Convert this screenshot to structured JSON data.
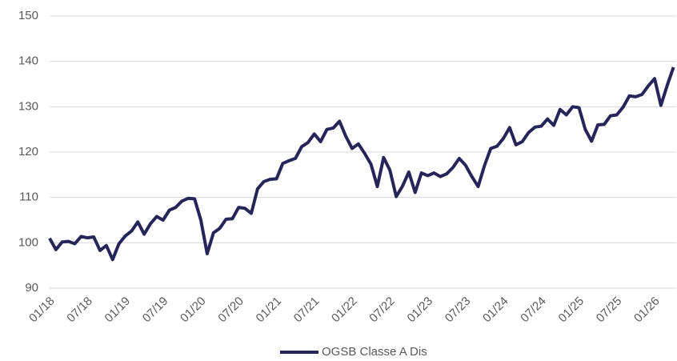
{
  "chart_data": {
    "type": "line",
    "categories": [
      "01/18",
      null,
      null,
      null,
      null,
      null,
      "07/18",
      null,
      null,
      null,
      null,
      null,
      "01/19",
      null,
      null,
      null,
      null,
      null,
      "07/19",
      null,
      null,
      null,
      null,
      null,
      "01/20",
      null,
      null,
      null,
      null,
      null,
      "07/20",
      null,
      null,
      null,
      null,
      null,
      "01/21",
      null,
      null,
      null,
      null,
      null,
      "07/21",
      null,
      null,
      null,
      null,
      null,
      "01/22",
      null,
      null,
      null,
      null,
      null,
      "07/22",
      null,
      null,
      null,
      null,
      null,
      "01/23",
      null,
      null,
      null,
      null,
      null,
      "07/23",
      null,
      null,
      null,
      null,
      null,
      "01/24",
      null,
      null,
      null,
      null,
      null,
      "07/24",
      null,
      null,
      null,
      null,
      null,
      "01/25",
      null,
      null,
      null,
      null,
      null,
      "07/25",
      null,
      null,
      null,
      null,
      null,
      "01/26",
      null,
      null,
      null
    ],
    "series": [
      {
        "name": "OGSB Classe A Dis",
        "color": "#262459",
        "values": [
          101,
          98.5,
          100.2,
          100.3,
          99.8,
          101.4,
          101.1,
          101.3,
          98.3,
          99.4,
          96.3,
          99.8,
          101.5,
          102.6,
          104.6,
          101.9,
          104.2,
          105.8,
          105,
          107.2,
          107.8,
          109.2,
          109.8,
          109.7,
          105,
          97.6,
          102.2,
          103.2,
          105.2,
          105.3,
          107.8,
          107.6,
          106.5,
          111.9,
          113.5,
          114,
          114.1,
          117.5,
          118.1,
          118.6,
          121.2,
          122.1,
          124,
          122.3,
          125,
          125.3,
          126.8,
          123.5,
          120.8,
          121.8,
          119.7,
          117.3,
          112.4,
          118.8,
          116,
          110.2,
          112.5,
          115.6,
          111.1,
          115.4,
          114.8,
          115.4,
          114.6,
          115.2,
          116.6,
          118.6,
          117.1,
          114.6,
          112.4,
          117,
          120.8,
          121.3,
          123,
          125.4,
          121.6,
          122.3,
          124.3,
          125.5,
          125.7,
          127.3,
          125.9,
          129.4,
          128.2,
          130,
          129.8,
          125,
          122.4,
          126,
          126.1,
          128,
          128.2,
          129.9,
          132.4,
          132.2,
          132.7,
          134.6,
          136.2,
          130.3,
          134.7,
          138.7
        ]
      }
    ],
    "ylim": [
      90,
      150
    ],
    "yticks": [
      90,
      100,
      110,
      120,
      130,
      140,
      150
    ],
    "grid": true,
    "legend": "bottom"
  }
}
